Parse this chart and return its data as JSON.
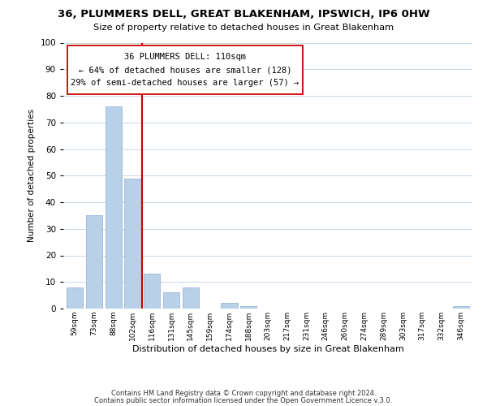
{
  "title": "36, PLUMMERS DELL, GREAT BLAKENHAM, IPSWICH, IP6 0HW",
  "subtitle": "Size of property relative to detached houses in Great Blakenham",
  "xlabel": "Distribution of detached houses by size in Great Blakenham",
  "ylabel": "Number of detached properties",
  "bar_labels": [
    "59sqm",
    "73sqm",
    "88sqm",
    "102sqm",
    "116sqm",
    "131sqm",
    "145sqm",
    "159sqm",
    "174sqm",
    "188sqm",
    "203sqm",
    "217sqm",
    "231sqm",
    "246sqm",
    "260sqm",
    "274sqm",
    "289sqm",
    "303sqm",
    "317sqm",
    "332sqm",
    "346sqm"
  ],
  "bar_values": [
    8,
    35,
    76,
    49,
    13,
    6,
    8,
    0,
    2,
    1,
    0,
    0,
    0,
    0,
    0,
    0,
    0,
    0,
    0,
    0,
    1
  ],
  "bar_color": "#b8d0e8",
  "bar_edge_color": "#9ab8d8",
  "vline_x": 3.5,
  "vline_color": "#cc0000",
  "ylim": [
    0,
    100
  ],
  "yticks": [
    0,
    10,
    20,
    30,
    40,
    50,
    60,
    70,
    80,
    90,
    100
  ],
  "annotation_line1": "36 PLUMMERS DELL: 110sqm",
  "annotation_line2": "← 64% of detached houses are smaller (128)",
  "annotation_line3": "29% of semi-detached houses are larger (57) →",
  "footnote1": "Contains HM Land Registry data © Crown copyright and database right 2024.",
  "footnote2": "Contains public sector information licensed under the Open Government Licence v.3.0.",
  "background_color": "#ffffff",
  "grid_color": "#c8d8e8"
}
